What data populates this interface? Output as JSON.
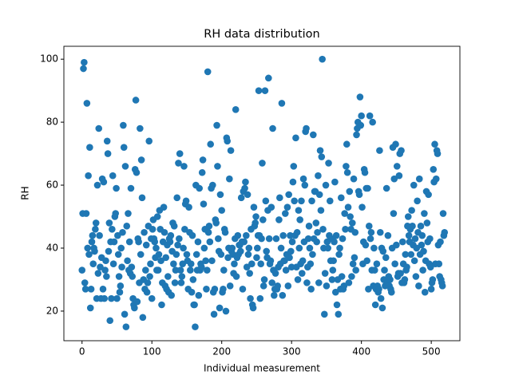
{
  "chart_data": {
    "type": "scatter",
    "title": "RH data distribution",
    "x_label": "Individual measurement",
    "y_label": "RH",
    "xlim": [
      -26,
      541
    ],
    "ylim": [
      10.6,
      104.1
    ],
    "xticks": [
      0,
      100,
      200,
      300,
      400,
      500
    ],
    "yticks": [
      20,
      40,
      60,
      80,
      100
    ],
    "series": [
      {
        "color": "#1f77b4",
        "x": [
          0,
          1,
          2,
          3,
          4,
          5,
          6,
          7,
          8,
          9,
          10,
          11,
          12,
          13,
          14,
          15,
          16,
          17,
          18,
          19,
          20,
          21,
          22,
          23,
          24,
          25,
          26,
          27,
          28,
          29,
          30,
          31,
          32,
          33,
          34,
          35,
          36,
          37,
          38,
          39,
          40,
          41,
          42,
          43,
          44,
          45,
          46,
          47,
          48,
          49,
          50,
          51,
          52,
          53,
          54,
          55,
          56,
          57,
          58,
          59,
          60,
          61,
          62,
          63,
          64,
          65,
          66,
          67,
          68,
          69,
          70,
          71,
          72,
          73,
          74,
          75,
          76,
          77,
          78,
          79,
          80,
          81,
          82,
          83,
          84,
          85,
          86,
          87,
          88,
          89,
          90,
          91,
          92,
          93,
          94,
          95,
          96,
          97,
          98,
          99,
          100,
          101,
          102,
          103,
          104,
          105,
          106,
          107,
          108,
          109,
          110,
          111,
          112,
          113,
          114,
          115,
          116,
          117,
          118,
          119,
          120,
          121,
          122,
          123,
          124,
          125,
          126,
          127,
          128,
          129,
          130,
          131,
          132,
          133,
          134,
          135,
          136,
          137,
          138,
          139,
          140,
          141,
          142,
          143,
          144,
          145,
          146,
          147,
          148,
          149,
          150,
          151,
          152,
          153,
          154,
          155,
          156,
          157,
          158,
          159,
          160,
          161,
          162,
          163,
          164,
          165,
          166,
          167,
          168,
          169,
          170,
          171,
          172,
          173,
          174,
          175,
          176,
          177,
          178,
          179,
          180,
          181,
          182,
          183,
          184,
          185,
          186,
          187,
          188,
          189,
          190,
          191,
          192,
          193,
          194,
          195,
          196,
          197,
          198,
          199,
          200,
          201,
          202,
          203,
          204,
          205,
          206,
          207,
          208,
          209,
          210,
          211,
          212,
          213,
          214,
          215,
          216,
          217,
          218,
          219,
          220,
          221,
          222,
          223,
          224,
          225,
          226,
          227,
          228,
          229,
          230,
          231,
          232,
          233,
          234,
          235,
          236,
          237,
          238,
          239,
          240,
          241,
          242,
          243,
          244,
          245,
          246,
          247,
          248,
          249,
          250,
          251,
          252,
          253,
          254,
          255,
          256,
          257,
          258,
          259,
          260,
          261,
          262,
          263,
          264,
          265,
          266,
          267,
          268,
          269,
          270,
          271,
          272,
          273,
          274,
          275,
          276,
          277,
          278,
          279,
          280,
          281,
          282,
          283,
          284,
          285,
          286,
          287,
          288,
          289,
          290,
          291,
          292,
          293,
          294,
          295,
          296,
          297,
          298,
          299,
          300,
          301,
          302,
          303,
          304,
          305,
          306,
          307,
          308,
          309,
          310,
          311,
          312,
          313,
          314,
          315,
          316,
          317,
          318,
          319,
          320,
          321,
          322,
          323,
          324,
          325,
          326,
          327,
          328,
          329,
          330,
          331,
          332,
          333,
          334,
          335,
          336,
          337,
          338,
          339,
          340,
          341,
          342,
          343,
          344,
          345,
          346,
          347,
          348,
          349,
          350,
          351,
          352,
          353,
          354,
          355,
          356,
          357,
          358,
          359,
          360,
          361,
          362,
          363,
          364,
          365,
          366,
          367,
          368,
          369,
          370,
          371,
          372,
          373,
          374,
          375,
          376,
          377,
          378,
          379,
          380,
          381,
          382,
          383,
          384,
          385,
          386,
          387,
          388,
          389,
          390,
          391,
          392,
          393,
          394,
          395,
          396,
          397,
          398,
          399,
          400,
          401,
          402,
          403,
          404,
          405,
          406,
          407,
          408,
          409,
          410,
          411,
          412,
          413,
          414,
          415,
          416,
          417,
          418,
          419,
          420,
          421,
          422,
          423,
          424,
          425,
          426,
          427,
          428,
          429,
          430,
          431,
          432,
          433,
          434,
          435,
          436,
          437,
          438,
          439,
          440,
          441,
          442,
          443,
          444,
          445,
          446,
          447,
          448,
          449,
          450,
          451,
          452,
          453,
          454,
          455,
          456,
          457,
          458,
          459,
          460,
          461,
          462,
          463,
          464,
          465,
          466,
          467,
          468,
          469,
          470,
          471,
          472,
          473,
          474,
          475,
          476,
          477,
          478,
          479,
          480,
          481,
          482,
          483,
          484,
          485,
          486,
          487,
          488,
          489,
          490,
          491,
          492,
          493,
          494,
          495,
          496,
          497,
          498,
          499,
          500,
          501,
          502,
          503,
          504,
          505,
          506,
          507,
          508,
          509,
          510,
          511,
          512,
          513,
          514,
          515,
          516,
          517,
          518,
          519
        ],
        "values": [
          33,
          51,
          97,
          99,
          29,
          27,
          51,
          86,
          40,
          63,
          38,
          72,
          21,
          27,
          42,
          44,
          35,
          40,
          39,
          46,
          48,
          24,
          60,
          32,
          78,
          44,
          34,
          24,
          37,
          62,
          27,
          61,
          24,
          33,
          36,
          31,
          74,
          70,
          39,
          48,
          17,
          42,
          24,
          46,
          63,
          35,
          42,
          50,
          51,
          59,
          24,
          44,
          38,
          31,
          26,
          28,
          40,
          34,
          45,
          79,
          72,
          19,
          66,
          15,
          47,
          36,
          51,
          33,
          42,
          32,
          59,
          34,
          31,
          24,
          22,
          21,
          65,
          87,
          64,
          23,
          43,
          42,
          29,
          78,
          38,
          68,
          56,
          18,
          30,
          45,
          27,
          33,
          41,
          26,
          29,
          47,
          74,
          31,
          35,
          43,
          24,
          46,
          49,
          43,
          42,
          37,
          40,
          33,
          50,
          33,
          38,
          52,
          46,
          36,
          22,
          29,
          42,
          53,
          45,
          28,
          37,
          27,
          41,
          31,
          26,
          43,
          42,
          44,
          25,
          39,
          48,
          35,
          47,
          29,
          33,
          38,
          56,
          41,
          67,
          43,
          70,
          33,
          29,
          31,
          35,
          40,
          66,
          46,
          54,
          55,
          38,
          36,
          27,
          53,
          45,
          33,
          35,
          26,
          44,
          30,
          22,
          22,
          15,
          60,
          38,
          33,
          42,
          25,
          59,
          33,
          35,
          34,
          64,
          68,
          54,
          40,
          46,
          36,
          27,
          33,
          96,
          45,
          47,
          42,
          73,
          59,
          36,
          60,
          26,
          19,
          27,
          49,
          48,
          79,
          66,
          43,
          39,
          21,
          57,
          38,
          52,
          26,
          27,
          33,
          46,
          45,
          20,
          75,
          74,
          37,
          40,
          62,
          28,
          71,
          39,
          40,
          38,
          32,
          35,
          43,
          84,
          31,
          37,
          44,
          38,
          41,
          41,
          39,
          56,
          42,
          27,
          58,
          42,
          59,
          61,
          44,
          34,
          57,
          38,
          40,
          32,
          24,
          46,
          35,
          22,
          21,
          53,
          47,
          48,
          50,
          37,
          40,
          44,
          90,
          44,
          24,
          35,
          43,
          67,
          49,
          28,
          30,
          90,
          55,
          39,
          37,
          52,
          94,
          43,
          35,
          36,
          53,
          29,
          78,
          33,
          25,
          27,
          32,
          43,
          27,
          28,
          34,
          49,
          56,
          35,
          40,
          86,
          25,
          44,
          36,
          36,
          51,
          33,
          38,
          53,
          28,
          57,
          37,
          44,
          39,
          34,
          42,
          61,
          66,
          55,
          44,
          75,
          34,
          45,
          30,
          52,
          40,
          49,
          35,
          55,
          32,
          36,
          62,
          42,
          60,
          77,
          78,
          29,
          34,
          43,
          47,
          40,
          35,
          27,
          55,
          38,
          76,
          43,
          58,
          58,
          48,
          42,
          45,
          63,
          29,
          57,
          71,
          52,
          69,
          100,
          46,
          40,
          19,
          32,
          60,
          28,
          42,
          40,
          67,
          44,
          55,
          36,
          43,
          30,
          33,
          36,
          42,
          61,
          26,
          44,
          22,
          30,
          19,
          38,
          40,
          27,
          56,
          31,
          43,
          27,
          28,
          51,
          46,
          66,
          73,
          64,
          53,
          29,
          58,
          50,
          46,
          31,
          48,
          35,
          62,
          37,
          45,
          33,
          76,
          78,
          80,
          58,
          57,
          88,
          79,
          82,
          53,
          35,
          42,
          65,
          64,
          41,
          59,
          36,
          59,
          27,
          47,
          82,
          43,
          45,
          33,
          80,
          28,
          40,
          33,
          22,
          27,
          35,
          28,
          26,
          27,
          71,
          45,
          24,
          40,
          21,
          39,
          30,
          33,
          28,
          37,
          59,
          29,
          44,
          31,
          28,
          30,
          27,
          26,
          40,
          72,
          51,
          62,
          35,
          73,
          41,
          66,
          31,
          32,
          63,
          70,
          32,
          71,
          29,
          42,
          35,
          29,
          30,
          38,
          33,
          34,
          47,
          50,
          44,
          42,
          46,
          38,
          52,
          47,
          41,
          60,
          36,
          43,
          31,
          40,
          55,
          45,
          28,
          62,
          38,
          47,
          41,
          44,
          33,
          39,
          51,
          26,
          36,
          58,
          48,
          42,
          57,
          35,
          43,
          34,
          27,
          29,
          30,
          65,
          61,
          73,
          35,
          62,
          71,
          70,
          41,
          35,
          31,
          42,
          30,
          29,
          28,
          51,
          44,
          45
        ]
      }
    ]
  }
}
